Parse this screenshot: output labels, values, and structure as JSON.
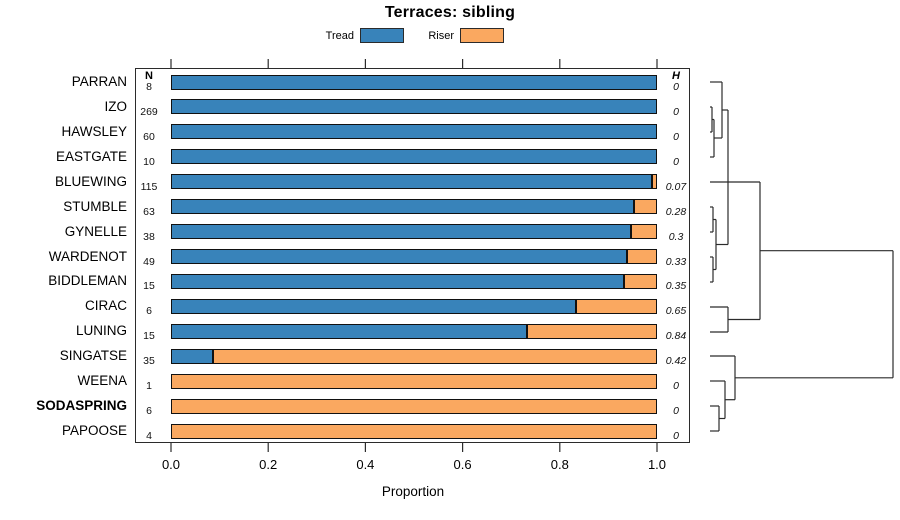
{
  "chart_data": {
    "type": "bar",
    "stacked": true,
    "orientation": "horizontal",
    "title": "Terraces: sibling",
    "xlabel": "Proportion",
    "xlim": [
      0,
      1
    ],
    "xticks": [
      0.0,
      0.2,
      0.4,
      0.6,
      0.8,
      1.0
    ],
    "xtick_labels": [
      "0.0",
      "0.2",
      "0.4",
      "0.6",
      "0.8",
      "1.0"
    ],
    "grid": false,
    "legend_position": "top",
    "series_labels": [
      "Tread",
      "Riser"
    ],
    "colors": {
      "tread": "#3883BA",
      "riser": "#FAA860",
      "outline": "#111111"
    },
    "n_header": "N",
    "h_header": "H",
    "rows": [
      {
        "label": "PARRAN",
        "n": 8,
        "tread": 1.0,
        "riser": 0.0,
        "h": "0",
        "bold": false
      },
      {
        "label": "IZO",
        "n": 269,
        "tread": 1.0,
        "riser": 0.0,
        "h": "0",
        "bold": false
      },
      {
        "label": "HAWSLEY",
        "n": 60,
        "tread": 1.0,
        "riser": 0.0,
        "h": "0",
        "bold": false
      },
      {
        "label": "EASTGATE",
        "n": 10,
        "tread": 1.0,
        "riser": 0.0,
        "h": "0",
        "bold": false
      },
      {
        "label": "BLUEWING",
        "n": 115,
        "tread": 0.99,
        "riser": 0.01,
        "h": "0.07",
        "bold": false
      },
      {
        "label": "STUMBLE",
        "n": 63,
        "tread": 0.952,
        "riser": 0.048,
        "h": "0.28",
        "bold": false
      },
      {
        "label": "GYNELLE",
        "n": 38,
        "tread": 0.947,
        "riser": 0.053,
        "h": "0.3",
        "bold": false
      },
      {
        "label": "WARDENOT",
        "n": 49,
        "tread": 0.939,
        "riser": 0.061,
        "h": "0.33",
        "bold": false
      },
      {
        "label": "BIDDLEMAN",
        "n": 15,
        "tread": 0.933,
        "riser": 0.067,
        "h": "0.35",
        "bold": false
      },
      {
        "label": "CIRAC",
        "n": 6,
        "tread": 0.833,
        "riser": 0.167,
        "h": "0.65",
        "bold": false
      },
      {
        "label": "LUNING",
        "n": 15,
        "tread": 0.733,
        "riser": 0.267,
        "h": "0.84",
        "bold": false
      },
      {
        "label": "SINGATSE",
        "n": 35,
        "tread": 0.086,
        "riser": 0.914,
        "h": "0.42",
        "bold": false
      },
      {
        "label": "WEENA",
        "n": 1,
        "tread": 0.0,
        "riser": 1.0,
        "h": "0",
        "bold": false
      },
      {
        "label": "SODASPRING",
        "n": 6,
        "tread": 0.0,
        "riser": 1.0,
        "h": "0",
        "bold": true
      },
      {
        "label": "PAPOOSE",
        "n": 4,
        "tread": 0.0,
        "riser": 1.0,
        "h": "0",
        "bold": false
      }
    ],
    "dendrogram": {
      "segments": [
        [
          710,
          82,
          722,
          82
        ],
        [
          710,
          107,
          712,
          107
        ],
        [
          710,
          132,
          712,
          132
        ],
        [
          712,
          107,
          712,
          132
        ],
        [
          712,
          119.5,
          714,
          119.5
        ],
        [
          710,
          157,
          714,
          157
        ],
        [
          714,
          119.5,
          714,
          157
        ],
        [
          714,
          138,
          722,
          138
        ],
        [
          722,
          82,
          722,
          138
        ],
        [
          722,
          110,
          728,
          110
        ],
        [
          710,
          182,
          728,
          182
        ],
        [
          710,
          207,
          713,
          207
        ],
        [
          710,
          232,
          713,
          232
        ],
        [
          713,
          207,
          713,
          232
        ],
        [
          713,
          219.5,
          716,
          219.5
        ],
        [
          710,
          257,
          713,
          257
        ],
        [
          710,
          282,
          713,
          282
        ],
        [
          713,
          257,
          713,
          282
        ],
        [
          713,
          269.5,
          716,
          269.5
        ],
        [
          716,
          219.5,
          716,
          269.5
        ],
        [
          716,
          244.5,
          728,
          244.5
        ],
        [
          728,
          110,
          728,
          244.5
        ],
        [
          728,
          182,
          760,
          182
        ],
        [
          710,
          307,
          728,
          307
        ],
        [
          710,
          332,
          728,
          332
        ],
        [
          728,
          307,
          728,
          332
        ],
        [
          728,
          319.5,
          760,
          319.5
        ],
        [
          760,
          182,
          760,
          319.5
        ],
        [
          760,
          250.7,
          893,
          250.7
        ],
        [
          710,
          356,
          735,
          356
        ],
        [
          710,
          381,
          725,
          381
        ],
        [
          710,
          406,
          719,
          406
        ],
        [
          710,
          431,
          719,
          431
        ],
        [
          719,
          406,
          719,
          431
        ],
        [
          719,
          418.5,
          725,
          418.5
        ],
        [
          725,
          381,
          725,
          418.5
        ],
        [
          725,
          399.7,
          735,
          399.7
        ],
        [
          735,
          356,
          735,
          399.7
        ],
        [
          735,
          377.8,
          893,
          377.8
        ],
        [
          893,
          250.7,
          893,
          377.8
        ]
      ]
    }
  }
}
